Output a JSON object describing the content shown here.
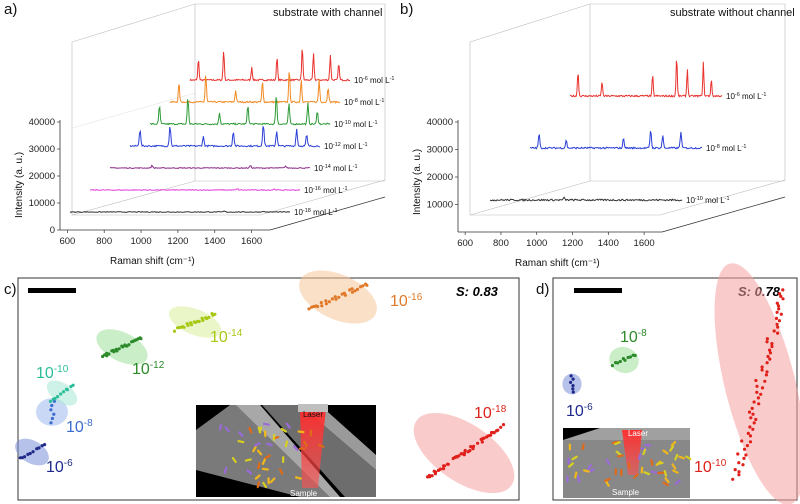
{
  "panels": {
    "a": "a)",
    "b": "b)",
    "c": "c)",
    "d": "d)"
  },
  "chart_data": [
    {
      "type": "line",
      "panel": "a",
      "title": "substrate with channel",
      "xlabel": "Raman shift (cm⁻¹)",
      "ylabel": "Intensity (a. u.)",
      "xticks": [
        "600",
        "800",
        "1000",
        "1200",
        "1400",
        "1600"
      ],
      "yticks": [
        "0",
        "10000",
        "20000",
        "30000",
        "40000"
      ],
      "xlim": [
        560,
        1700
      ],
      "ylim": [
        0,
        40000
      ],
      "series": [
        {
          "label": "10",
          "exp": "-6",
          "unit": " mol L",
          "uexp": "-1",
          "color": "#e8332e",
          "peaks": [
            {
              "x": 620,
              "h": 0.55
            },
            {
              "x": 800,
              "h": 0.8
            },
            {
              "x": 1000,
              "h": 0.35
            },
            {
              "x": 1180,
              "h": 0.6
            },
            {
              "x": 1360,
              "h": 0.9
            },
            {
              "x": 1440,
              "h": 0.7
            },
            {
              "x": 1560,
              "h": 0.65
            },
            {
              "x": 1620,
              "h": 0.45
            }
          ]
        },
        {
          "label": "10",
          "exp": "-8",
          "unit": " mol L",
          "uexp": "-1",
          "color": "#f08a24",
          "peaks": [
            {
              "x": 620,
              "h": 0.5
            },
            {
              "x": 800,
              "h": 0.75
            },
            {
              "x": 1000,
              "h": 0.3
            },
            {
              "x": 1180,
              "h": 0.55
            },
            {
              "x": 1360,
              "h": 0.85
            },
            {
              "x": 1440,
              "h": 0.6
            },
            {
              "x": 1560,
              "h": 0.6
            },
            {
              "x": 1620,
              "h": 0.4
            }
          ]
        },
        {
          "label": "10",
          "exp": "-10",
          "unit": " mol L",
          "uexp": "-1",
          "color": "#2e9a36",
          "peaks": [
            {
              "x": 620,
              "h": 0.5
            },
            {
              "x": 800,
              "h": 0.7
            },
            {
              "x": 1000,
              "h": 0.3
            },
            {
              "x": 1180,
              "h": 0.5
            },
            {
              "x": 1360,
              "h": 0.8
            },
            {
              "x": 1440,
              "h": 0.55
            },
            {
              "x": 1560,
              "h": 0.55
            },
            {
              "x": 1620,
              "h": 0.35
            }
          ]
        },
        {
          "label": "10",
          "exp": "-12",
          "unit": " mol L",
          "uexp": "-1",
          "color": "#2a3fd6",
          "peaks": [
            {
              "x": 620,
              "h": 0.45
            },
            {
              "x": 800,
              "h": 0.55
            },
            {
              "x": 1000,
              "h": 0.25
            },
            {
              "x": 1180,
              "h": 0.4
            },
            {
              "x": 1360,
              "h": 0.6
            },
            {
              "x": 1440,
              "h": 0.4
            },
            {
              "x": 1560,
              "h": 0.45
            },
            {
              "x": 1620,
              "h": 0.3
            }
          ]
        },
        {
          "label": "10",
          "exp": "-14",
          "unit": " mol L",
          "uexp": "-1",
          "color": "#8e2a8c",
          "peaks": [
            {
              "x": 800,
              "h": 0.12
            },
            {
              "x": 1360,
              "h": 0.12
            },
            {
              "x": 1560,
              "h": 0.1
            }
          ]
        },
        {
          "label": "10",
          "exp": "-16",
          "unit": " mol L",
          "uexp": "-1",
          "color": "#e040d8",
          "peaks": [
            {
              "x": 1360,
              "h": 0.06
            },
            {
              "x": 1560,
              "h": 0.05
            }
          ]
        },
        {
          "label": "10",
          "exp": "-18",
          "unit": " mol L",
          "uexp": "-1",
          "color": "#333333",
          "peaks": [
            {
              "x": 1360,
              "h": 0.04
            },
            {
              "x": 1560,
              "h": 0.04
            }
          ]
        }
      ]
    },
    {
      "type": "line",
      "panel": "b",
      "title": "substrate without channel",
      "xlabel": "Raman shift (cm⁻¹)",
      "ylabel": "Intensity (a. u.)",
      "xticks": [
        "600",
        "800",
        "1000",
        "1200",
        "1400",
        "1600"
      ],
      "yticks": [
        "10000",
        "20000",
        "30000",
        "40000"
      ],
      "xlim": [
        560,
        1700
      ],
      "ylim": [
        0,
        40000
      ],
      "series": [
        {
          "label": "10",
          "exp": "-6",
          "unit": " mol L",
          "uexp": "-1",
          "color": "#e8332e",
          "peaks": [
            {
              "x": 620,
              "h": 0.6
            },
            {
              "x": 800,
              "h": 0.35
            },
            {
              "x": 1180,
              "h": 0.5
            },
            {
              "x": 1360,
              "h": 0.95
            },
            {
              "x": 1440,
              "h": 0.65
            },
            {
              "x": 1560,
              "h": 0.8
            },
            {
              "x": 1620,
              "h": 0.4
            }
          ]
        },
        {
          "label": "10",
          "exp": "-8",
          "unit": " mol L",
          "uexp": "-1",
          "color": "#2a3fd6",
          "peaks": [
            {
              "x": 620,
              "h": 0.35
            },
            {
              "x": 800,
              "h": 0.2
            },
            {
              "x": 1180,
              "h": 0.25
            },
            {
              "x": 1360,
              "h": 0.45
            },
            {
              "x": 1440,
              "h": 0.3
            },
            {
              "x": 1560,
              "h": 0.4
            }
          ]
        },
        {
          "label": "10",
          "exp": "-10",
          "unit": " mol L",
          "uexp": "-1",
          "color": "#333333",
          "peaks": [
            {
              "x": 1000,
              "h": 0.05
            }
          ]
        }
      ]
    },
    {
      "type": "scatter",
      "panel": "c",
      "score": "S: 0.83",
      "clusters": [
        {
          "base": "10",
          "exp": "-6",
          "color": "#1f2a8a",
          "glow": "#7b8fd9"
        },
        {
          "base": "10",
          "exp": "-8",
          "color": "#3c6bd0",
          "glow": "#9db8ec"
        },
        {
          "base": "10",
          "exp": "-10",
          "color": "#2bbd9a",
          "glow": "#a6e8d4"
        },
        {
          "base": "10",
          "exp": "-12",
          "color": "#2c8a2a",
          "glow": "#9ee09a"
        },
        {
          "base": "10",
          "exp": "-14",
          "color": "#a8c814",
          "glow": "#d9ef9a"
        },
        {
          "base": "10",
          "exp": "-16",
          "color": "#e07a2a",
          "glow": "#f7c79a"
        },
        {
          "base": "10",
          "exp": "-18",
          "color": "#e0201a",
          "glow": "#f4a3a0"
        }
      ],
      "inset": {
        "laser": "Laser",
        "sample": "Sample"
      }
    },
    {
      "type": "scatter",
      "panel": "d",
      "score": "S: 0.78",
      "clusters": [
        {
          "base": "10",
          "exp": "-6",
          "color": "#1f2a8a",
          "glow": "#7b8fd9"
        },
        {
          "base": "10",
          "exp": "-8",
          "color": "#2c8a2a",
          "glow": "#9ee09a"
        },
        {
          "base": "10",
          "exp": "-10",
          "color": "#e0201a",
          "glow": "#f4a3a0"
        }
      ],
      "inset": {
        "laser": "Laser",
        "sample": "Sample"
      }
    }
  ]
}
